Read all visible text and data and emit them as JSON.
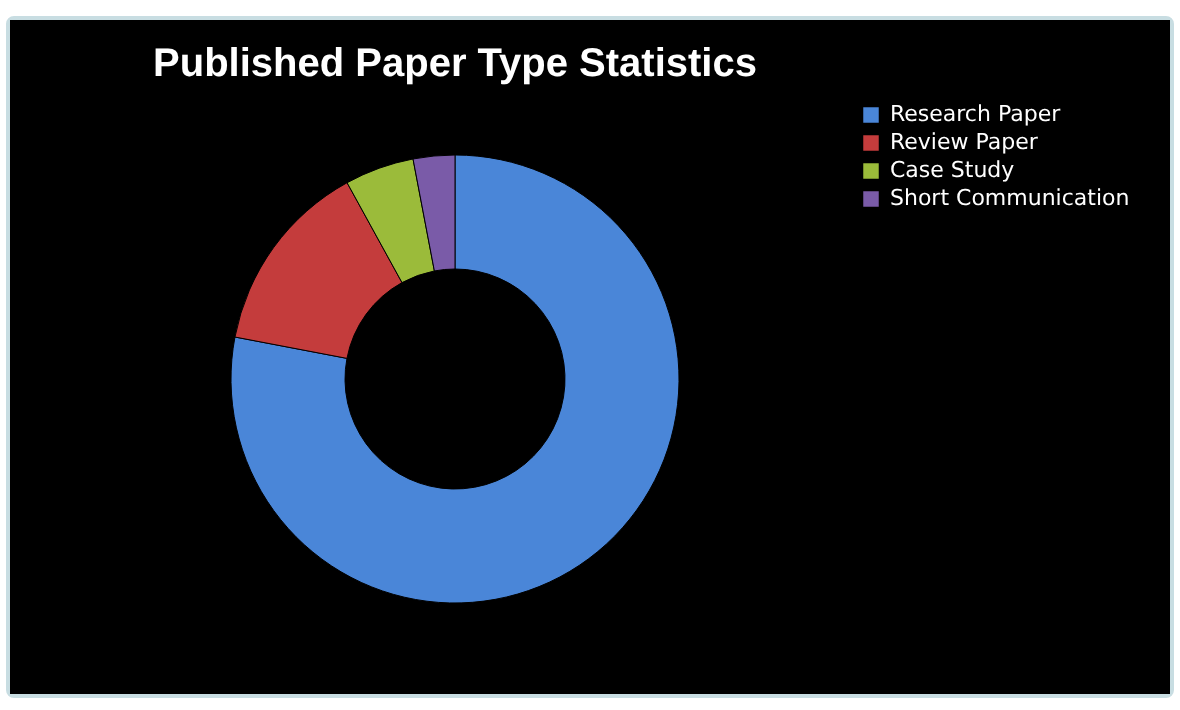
{
  "chart_data": {
    "type": "donut",
    "title": "Published Paper Type Statistics",
    "categories": [
      "Research Paper",
      "Review Paper",
      "Case Study",
      "Short Communication"
    ],
    "values": [
      78,
      14,
      5,
      3
    ],
    "colors": [
      "#4a86d8",
      "#c43c3c",
      "#9bbb3a",
      "#7a5ba8"
    ],
    "legend": "right"
  }
}
